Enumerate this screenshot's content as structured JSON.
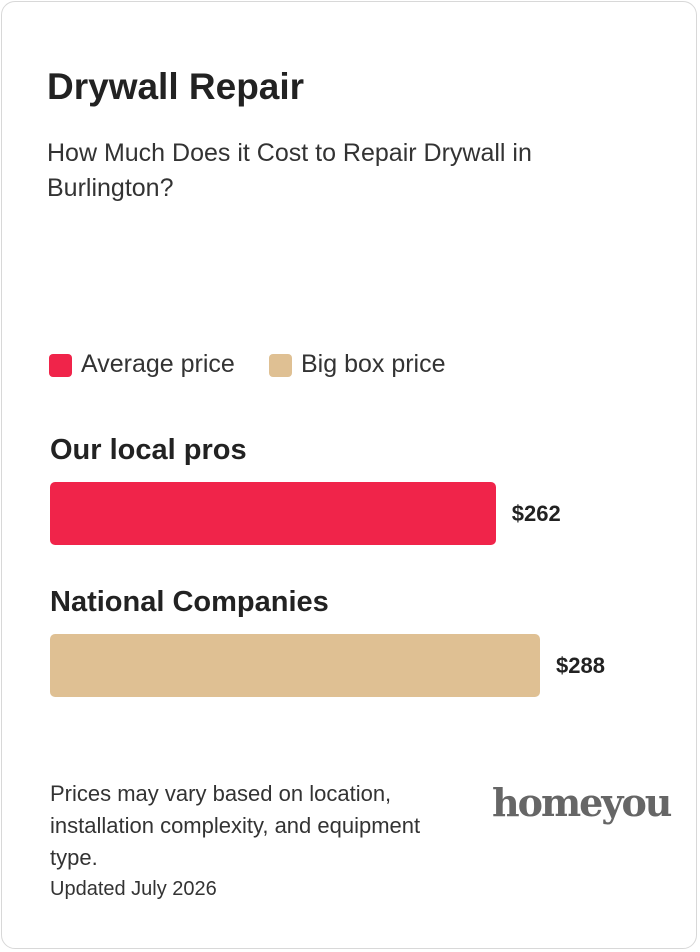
{
  "chart_data": {
    "type": "bar",
    "orientation": "horizontal",
    "title": "Drywall Repair",
    "subtitle": "How Much Does it Cost to Repair Drywall in Burlington?",
    "categories": [
      "Our local pros",
      "National Companies"
    ],
    "series": [
      {
        "name": "Average price",
        "color": "#f0244a",
        "values": [
          262,
          null
        ],
        "value_labels": [
          "$262",
          null
        ]
      },
      {
        "name": "Big box price",
        "color": "#dfc093",
        "values": [
          null,
          288
        ],
        "value_labels": [
          null,
          "$288"
        ]
      }
    ],
    "footnote": "Prices may vary based on location, installation complexity, and equipment type.",
    "updated": "Updated July 2026",
    "brand": "homeyou"
  }
}
